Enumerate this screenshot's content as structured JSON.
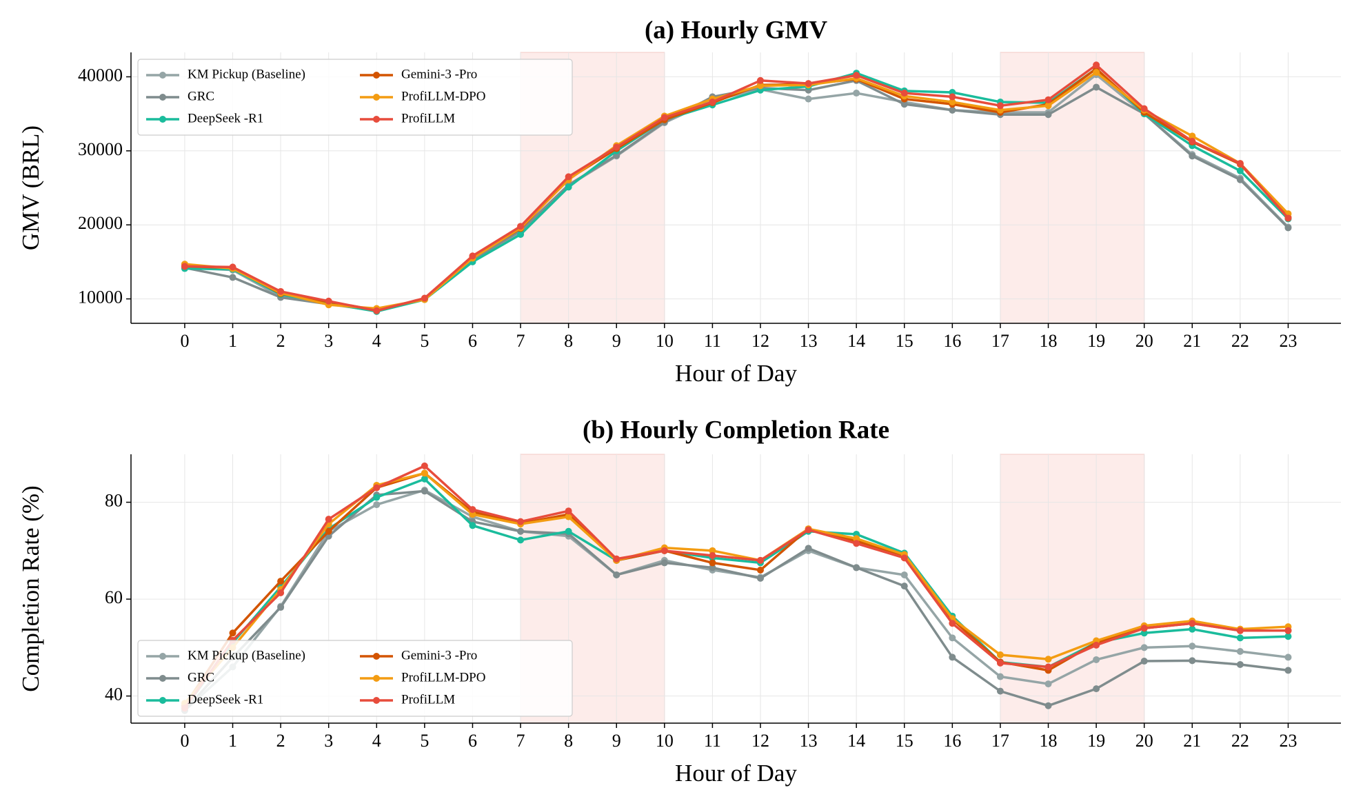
{
  "chart_data": [
    {
      "type": "line",
      "title": "(a) Hourly GMV",
      "x_label": "Hour of Day",
      "y_label": "GMV (BRL)",
      "x": [
        0,
        1,
        2,
        3,
        4,
        5,
        6,
        7,
        8,
        9,
        10,
        11,
        12,
        13,
        14,
        15,
        16,
        17,
        18,
        19,
        20,
        21,
        22,
        23
      ],
      "xlim": [
        -1.12,
        24.1
      ],
      "xticks": [
        0,
        1,
        2,
        3,
        4,
        5,
        6,
        7,
        8,
        9,
        10,
        11,
        12,
        13,
        14,
        15,
        16,
        17,
        18,
        19,
        20,
        21,
        22,
        23
      ],
      "ylim": [
        6700,
        43300
      ],
      "yticks": [
        10000,
        20000,
        30000,
        40000
      ],
      "grid": true,
      "legend": "upper left",
      "highlight_spans": [
        [
          7,
          10
        ],
        [
          17,
          20
        ]
      ],
      "highlight_color": "#fdecea",
      "series": [
        {
          "name": "KM Pickup (Baseline)",
          "color": "#95a5a6",
          "values": [
            14200,
            13900,
            10300,
            9300,
            8500,
            10000,
            15200,
            18900,
            25300,
            29300,
            33800,
            36800,
            38300,
            37000,
            37800,
            36600,
            35500,
            35200,
            35200,
            40300,
            35000,
            29500,
            26300,
            19700
          ]
        },
        {
          "name": "GRC",
          "color": "#7f8c8d",
          "values": [
            14200,
            12900,
            10200,
            9300,
            8400,
            10000,
            15300,
            19200,
            25400,
            29400,
            33900,
            37300,
            38500,
            38200,
            39500,
            36300,
            35500,
            34900,
            34900,
            38600,
            35000,
            29300,
            26100,
            19600
          ]
        },
        {
          "name": "DeepSeek -R1",
          "color": "#1abc9c",
          "values": [
            14100,
            14000,
            10600,
            9400,
            8300,
            9900,
            15000,
            18700,
            25100,
            30000,
            34200,
            36200,
            38200,
            38700,
            40500,
            38100,
            37900,
            36600,
            36500,
            41100,
            35000,
            30700,
            27300,
            20800
          ]
        },
        {
          "name": "Gemini-3 -Pro",
          "color": "#d35400",
          "values": [
            14400,
            14200,
            10700,
            9600,
            8500,
            10000,
            15600,
            19500,
            26200,
            30300,
            34200,
            36500,
            38900,
            39000,
            39700,
            37000,
            36300,
            35200,
            36300,
            41100,
            35200,
            31200,
            28200,
            21000
          ]
        },
        {
          "name": "ProfiLLM-DPO",
          "color": "#f39c12",
          "values": [
            14700,
            14100,
            10800,
            9200,
            8700,
            9900,
            15500,
            19600,
            26100,
            30700,
            34700,
            37000,
            38800,
            38900,
            39800,
            37400,
            36600,
            35500,
            36100,
            40600,
            35500,
            32000,
            28300,
            21500
          ]
        },
        {
          "name": "ProfiLLM",
          "color": "#e74c3c",
          "values": [
            14400,
            14300,
            11000,
            9700,
            8400,
            10100,
            15800,
            19800,
            26500,
            30500,
            34500,
            36600,
            39500,
            39100,
            40200,
            37800,
            37300,
            36100,
            36900,
            41600,
            35700,
            31300,
            28300,
            20900
          ]
        }
      ]
    },
    {
      "type": "line",
      "title": "(b) Hourly Completion Rate",
      "x_label": "Hour of Day",
      "y_label": "Completion Rate (%)",
      "x": [
        0,
        1,
        2,
        3,
        4,
        5,
        6,
        7,
        8,
        9,
        10,
        11,
        12,
        13,
        14,
        15,
        16,
        17,
        18,
        19,
        20,
        21,
        22,
        23
      ],
      "xlim": [
        -1.12,
        24.1
      ],
      "xticks": [
        0,
        1,
        2,
        3,
        4,
        5,
        6,
        7,
        8,
        9,
        10,
        11,
        12,
        13,
        14,
        15,
        16,
        17,
        18,
        19,
        20,
        21,
        22,
        23
      ],
      "ylim": [
        34.4,
        89.9
      ],
      "yticks": [
        40,
        60,
        80
      ],
      "grid": true,
      "legend": "lower left",
      "highlight_spans": [
        [
          7,
          10
        ],
        [
          17,
          20
        ]
      ],
      "highlight_color": "#fdecea",
      "series": [
        {
          "name": "KM Pickup (Baseline)",
          "color": "#95a5a6",
          "values": [
            37,
            46,
            58.5,
            74,
            79.5,
            82.5,
            77,
            74,
            73,
            65,
            68,
            66,
            64.5,
            70,
            66.5,
            65,
            52,
            44,
            42.5,
            47.5,
            50,
            50.3,
            49.2,
            48
          ]
        },
        {
          "name": "GRC",
          "color": "#7f8c8d",
          "values": [
            37,
            48,
            58.3,
            73,
            81.5,
            82.3,
            76,
            74,
            73.5,
            65,
            67.5,
            66.5,
            64.3,
            70.5,
            66.5,
            62.7,
            48,
            41,
            38,
            41.5,
            47.2,
            47.3,
            46.5,
            45.3
          ]
        },
        {
          "name": "DeepSeek -R1",
          "color": "#1abc9c",
          "values": [
            37.5,
            51,
            62.5,
            74.5,
            81,
            84.8,
            75.2,
            72.2,
            74,
            68,
            70,
            68.5,
            67.5,
            74,
            73.4,
            69.5,
            56.5,
            47,
            46,
            51,
            53,
            53.8,
            52,
            52.3
          ]
        },
        {
          "name": "Gemini-3 -Pro",
          "color": "#d35400",
          "values": [
            38,
            53,
            63.7,
            74,
            83,
            86,
            78,
            75.6,
            77.5,
            68,
            70,
            67.5,
            66,
            74.5,
            72,
            69,
            55.8,
            47,
            45.3,
            51,
            54,
            55,
            53.5,
            53.5
          ]
        },
        {
          "name": "ProfiLLM-DPO",
          "color": "#f39c12",
          "values": [
            38.5,
            50,
            62,
            75.5,
            83.5,
            86,
            77.5,
            75.5,
            77,
            68,
            70.6,
            70,
            68,
            74.5,
            72.5,
            69.2,
            56,
            48.5,
            47.6,
            51.4,
            54.5,
            55.5,
            53.8,
            54.3
          ]
        },
        {
          "name": "ProfiLLM",
          "color": "#e74c3c",
          "values": [
            37.5,
            51.5,
            61.3,
            76.5,
            83,
            87.5,
            78.5,
            76,
            78.2,
            68.3,
            70,
            69,
            68,
            74.3,
            71.5,
            68.5,
            55,
            46.8,
            46,
            50.5,
            54,
            55,
            53.5,
            53.5
          ]
        }
      ]
    }
  ]
}
